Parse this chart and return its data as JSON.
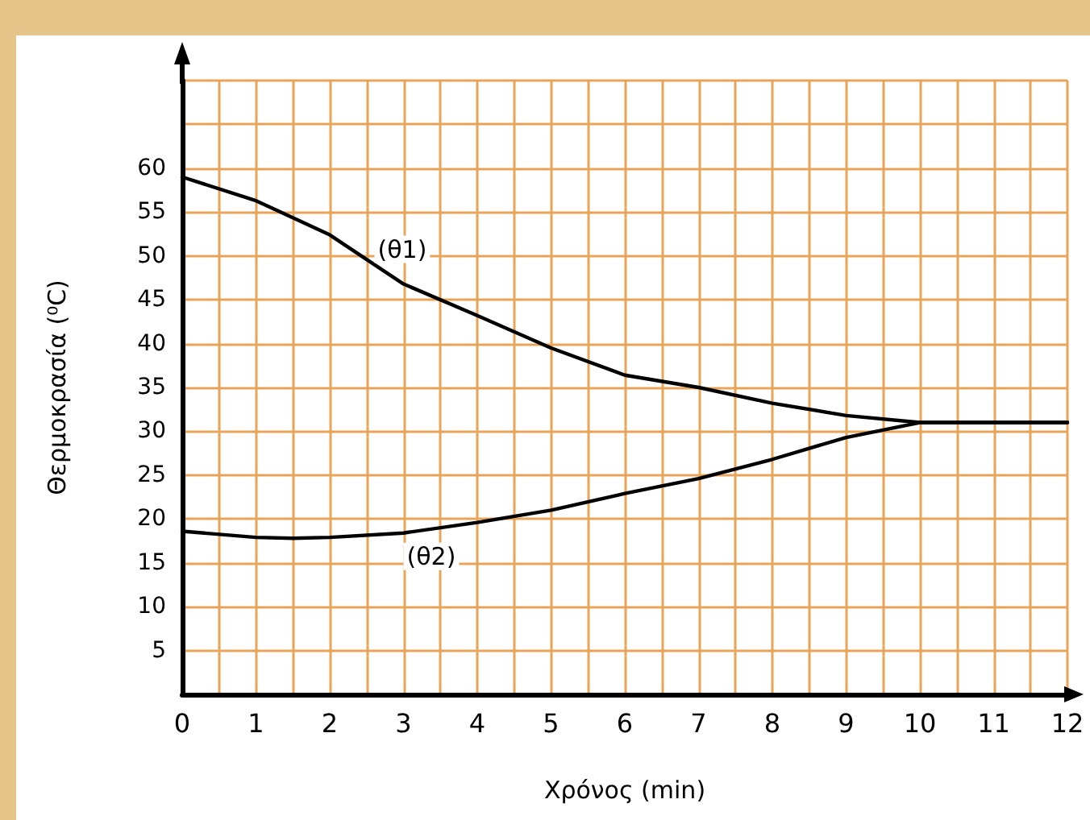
{
  "chart_data": {
    "type": "line",
    "xlabel": "Χρόνος (min)",
    "ylabel": "Θερμοκρασία (⁰C)",
    "series": [
      {
        "name": "(θ1)",
        "color": "#000000",
        "x": [
          0,
          1,
          2,
          3,
          4,
          5,
          6,
          7,
          8,
          9,
          10,
          11,
          12
        ],
        "values": [
          59,
          56.3,
          52.4,
          46.8,
          43.2,
          39.5,
          36.4,
          35,
          33.2,
          31.8,
          31,
          31,
          31
        ]
      },
      {
        "name": "(θ2)",
        "color": "#000000",
        "x": [
          0,
          1,
          1.5,
          2,
          3,
          4,
          5,
          6,
          7,
          8,
          9,
          10,
          11,
          12
        ],
        "values": [
          18.6,
          17.9,
          17.8,
          17.9,
          18.4,
          19.6,
          21,
          22.9,
          24.6,
          26.8,
          29.3,
          31,
          31,
          31
        ]
      }
    ],
    "xlim": [
      0,
      12
    ],
    "xticks": [
      0,
      1,
      2,
      3,
      4,
      5,
      6,
      7,
      8,
      9,
      10,
      11,
      12
    ],
    "ylim": [
      0,
      70
    ],
    "yticks": [
      {
        "value": 0,
        "label": null
      },
      5,
      10,
      15,
      20,
      25,
      30,
      35,
      40,
      45,
      50,
      55,
      60,
      {
        "value": 65,
        "label": null
      },
      {
        "value": 70,
        "label": null
      }
    ],
    "grid": true,
    "marker": "none",
    "line_style": "solid"
  }
}
